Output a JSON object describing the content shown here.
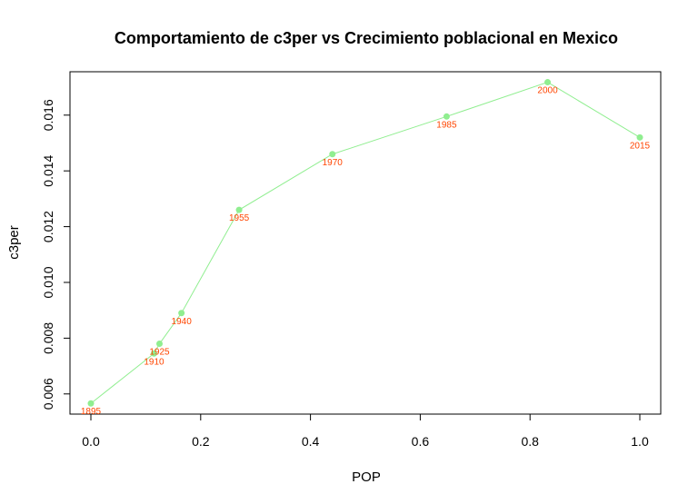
{
  "chart_data": {
    "type": "line",
    "title": "Comportamiento de c3per vs Crecimiento poblacional en Mexico",
    "xlabel": "POP",
    "ylabel": "c3per",
    "xlim": [
      0.0,
      1.0
    ],
    "ylim": [
      0.0055,
      0.0173
    ],
    "x_ticks": [
      "0.0",
      "0.2",
      "0.4",
      "0.6",
      "0.8",
      "1.0"
    ],
    "y_ticks": [
      "0.006",
      "0.008",
      "0.010",
      "0.012",
      "0.014",
      "0.016"
    ],
    "grid": false,
    "series": [
      {
        "line_color": "#90EE90",
        "point_color": "#90EE90",
        "label_color": "#FF4500",
        "points": [
          {
            "x": 0.0,
            "y": 0.00566,
            "label": "1895"
          },
          {
            "x": 0.115,
            "y": 0.00745,
            "label": "1910"
          },
          {
            "x": 0.125,
            "y": 0.0078,
            "label": "1925"
          },
          {
            "x": 0.165,
            "y": 0.0089,
            "label": "1940"
          },
          {
            "x": 0.27,
            "y": 0.0126,
            "label": "1955"
          },
          {
            "x": 0.44,
            "y": 0.0146,
            "label": "1970"
          },
          {
            "x": 0.648,
            "y": 0.01595,
            "label": "1985"
          },
          {
            "x": 0.832,
            "y": 0.01718,
            "label": "2000"
          },
          {
            "x": 1.0,
            "y": 0.0152,
            "label": "2015"
          }
        ]
      }
    ]
  }
}
